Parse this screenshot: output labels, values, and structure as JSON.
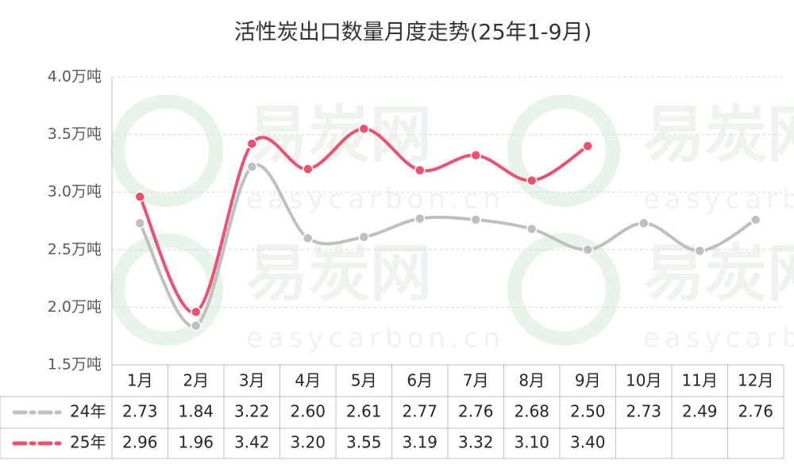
{
  "chart_data": {
    "type": "line",
    "title": "活性炭出口数量月度走势(25年1-9月)",
    "watermark": [
      "易炭网",
      "easycarbon.cn"
    ],
    "categories": [
      "1月",
      "2月",
      "3月",
      "4月",
      "5月",
      "6月",
      "7月",
      "8月",
      "9月",
      "10月",
      "11月",
      "12月"
    ],
    "series": [
      {
        "name": "24年",
        "color": "#bfbfbf",
        "values": [
          2.73,
          1.84,
          3.22,
          2.6,
          2.61,
          2.77,
          2.76,
          2.68,
          2.5,
          2.73,
          2.49,
          2.76
        ],
        "value_labels": [
          "2.73",
          "1.84",
          "3.22",
          "2.60",
          "2.61",
          "2.77",
          "2.76",
          "2.68",
          "2.50",
          "2.73",
          "2.49",
          "2.76"
        ]
      },
      {
        "name": "25年",
        "color": "#f0506e",
        "values": [
          2.96,
          1.96,
          3.42,
          3.2,
          3.55,
          3.19,
          3.32,
          3.1,
          3.4,
          null,
          null,
          null
        ],
        "value_labels": [
          "2.96",
          "1.96",
          "3.42",
          "3.20",
          "3.55",
          "3.19",
          "3.32",
          "3.10",
          "3.40",
          null,
          null,
          null
        ]
      }
    ],
    "ylim": [
      1.5,
      4
    ],
    "yticks": [
      {
        "value": 1.5,
        "label": "1.5万吨"
      },
      {
        "value": 2,
        "label": "2.0万吨"
      },
      {
        "value": 2.5,
        "label": "2.5万吨"
      },
      {
        "value": 3,
        "label": "3.0万吨"
      },
      {
        "value": 3.5,
        "label": "3.5万吨"
      },
      {
        "value": 4,
        "label": "4.0万吨"
      }
    ],
    "grid": true
  }
}
